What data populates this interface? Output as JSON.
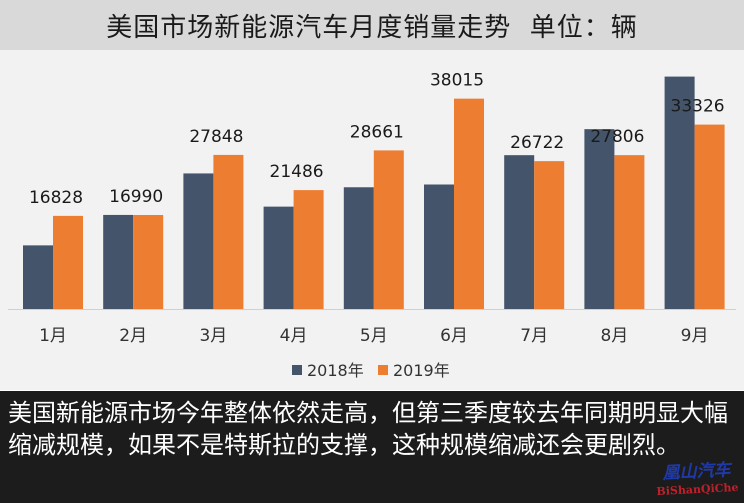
{
  "header": {
    "title": "美国市场新能源汽车月度销量走势",
    "unit": "单位：辆"
  },
  "colors": {
    "series_2018": "#44546a",
    "series_2019": "#ed7d31",
    "title_bg": "#d9d9d9",
    "plot_bg": "#f2f2f2",
    "caption_bg": "#1c1c1c"
  },
  "chart_data": {
    "type": "bar",
    "title": "美国市场新能源汽车月度销量走势  单位：辆",
    "categories": [
      "1月",
      "2月",
      "3月",
      "4月",
      "5月",
      "6月",
      "7月",
      "8月",
      "9月"
    ],
    "series": [
      {
        "name": "2018年",
        "values": [
          11500,
          17000,
          24500,
          18500,
          22000,
          22500,
          27800,
          32500,
          42000
        ]
      },
      {
        "name": "2019年",
        "values": [
          16828,
          16990,
          27848,
          21486,
          28661,
          38015,
          26722,
          27806,
          33326
        ]
      }
    ],
    "data_labels_series": "2019年",
    "ylim": [
      0,
      45000
    ],
    "grid": false,
    "legend": "bottom-center"
  },
  "caption": {
    "text": "美国新能源市场今年整体依然走高，但第三季度较去年同期明显大幅缩减规模，如果不是特斯拉的支撑，这种规模缩减还会更剧烈。"
  },
  "watermark": {
    "line1": "凰山汽车",
    "line2": "BiShanQiChe"
  }
}
